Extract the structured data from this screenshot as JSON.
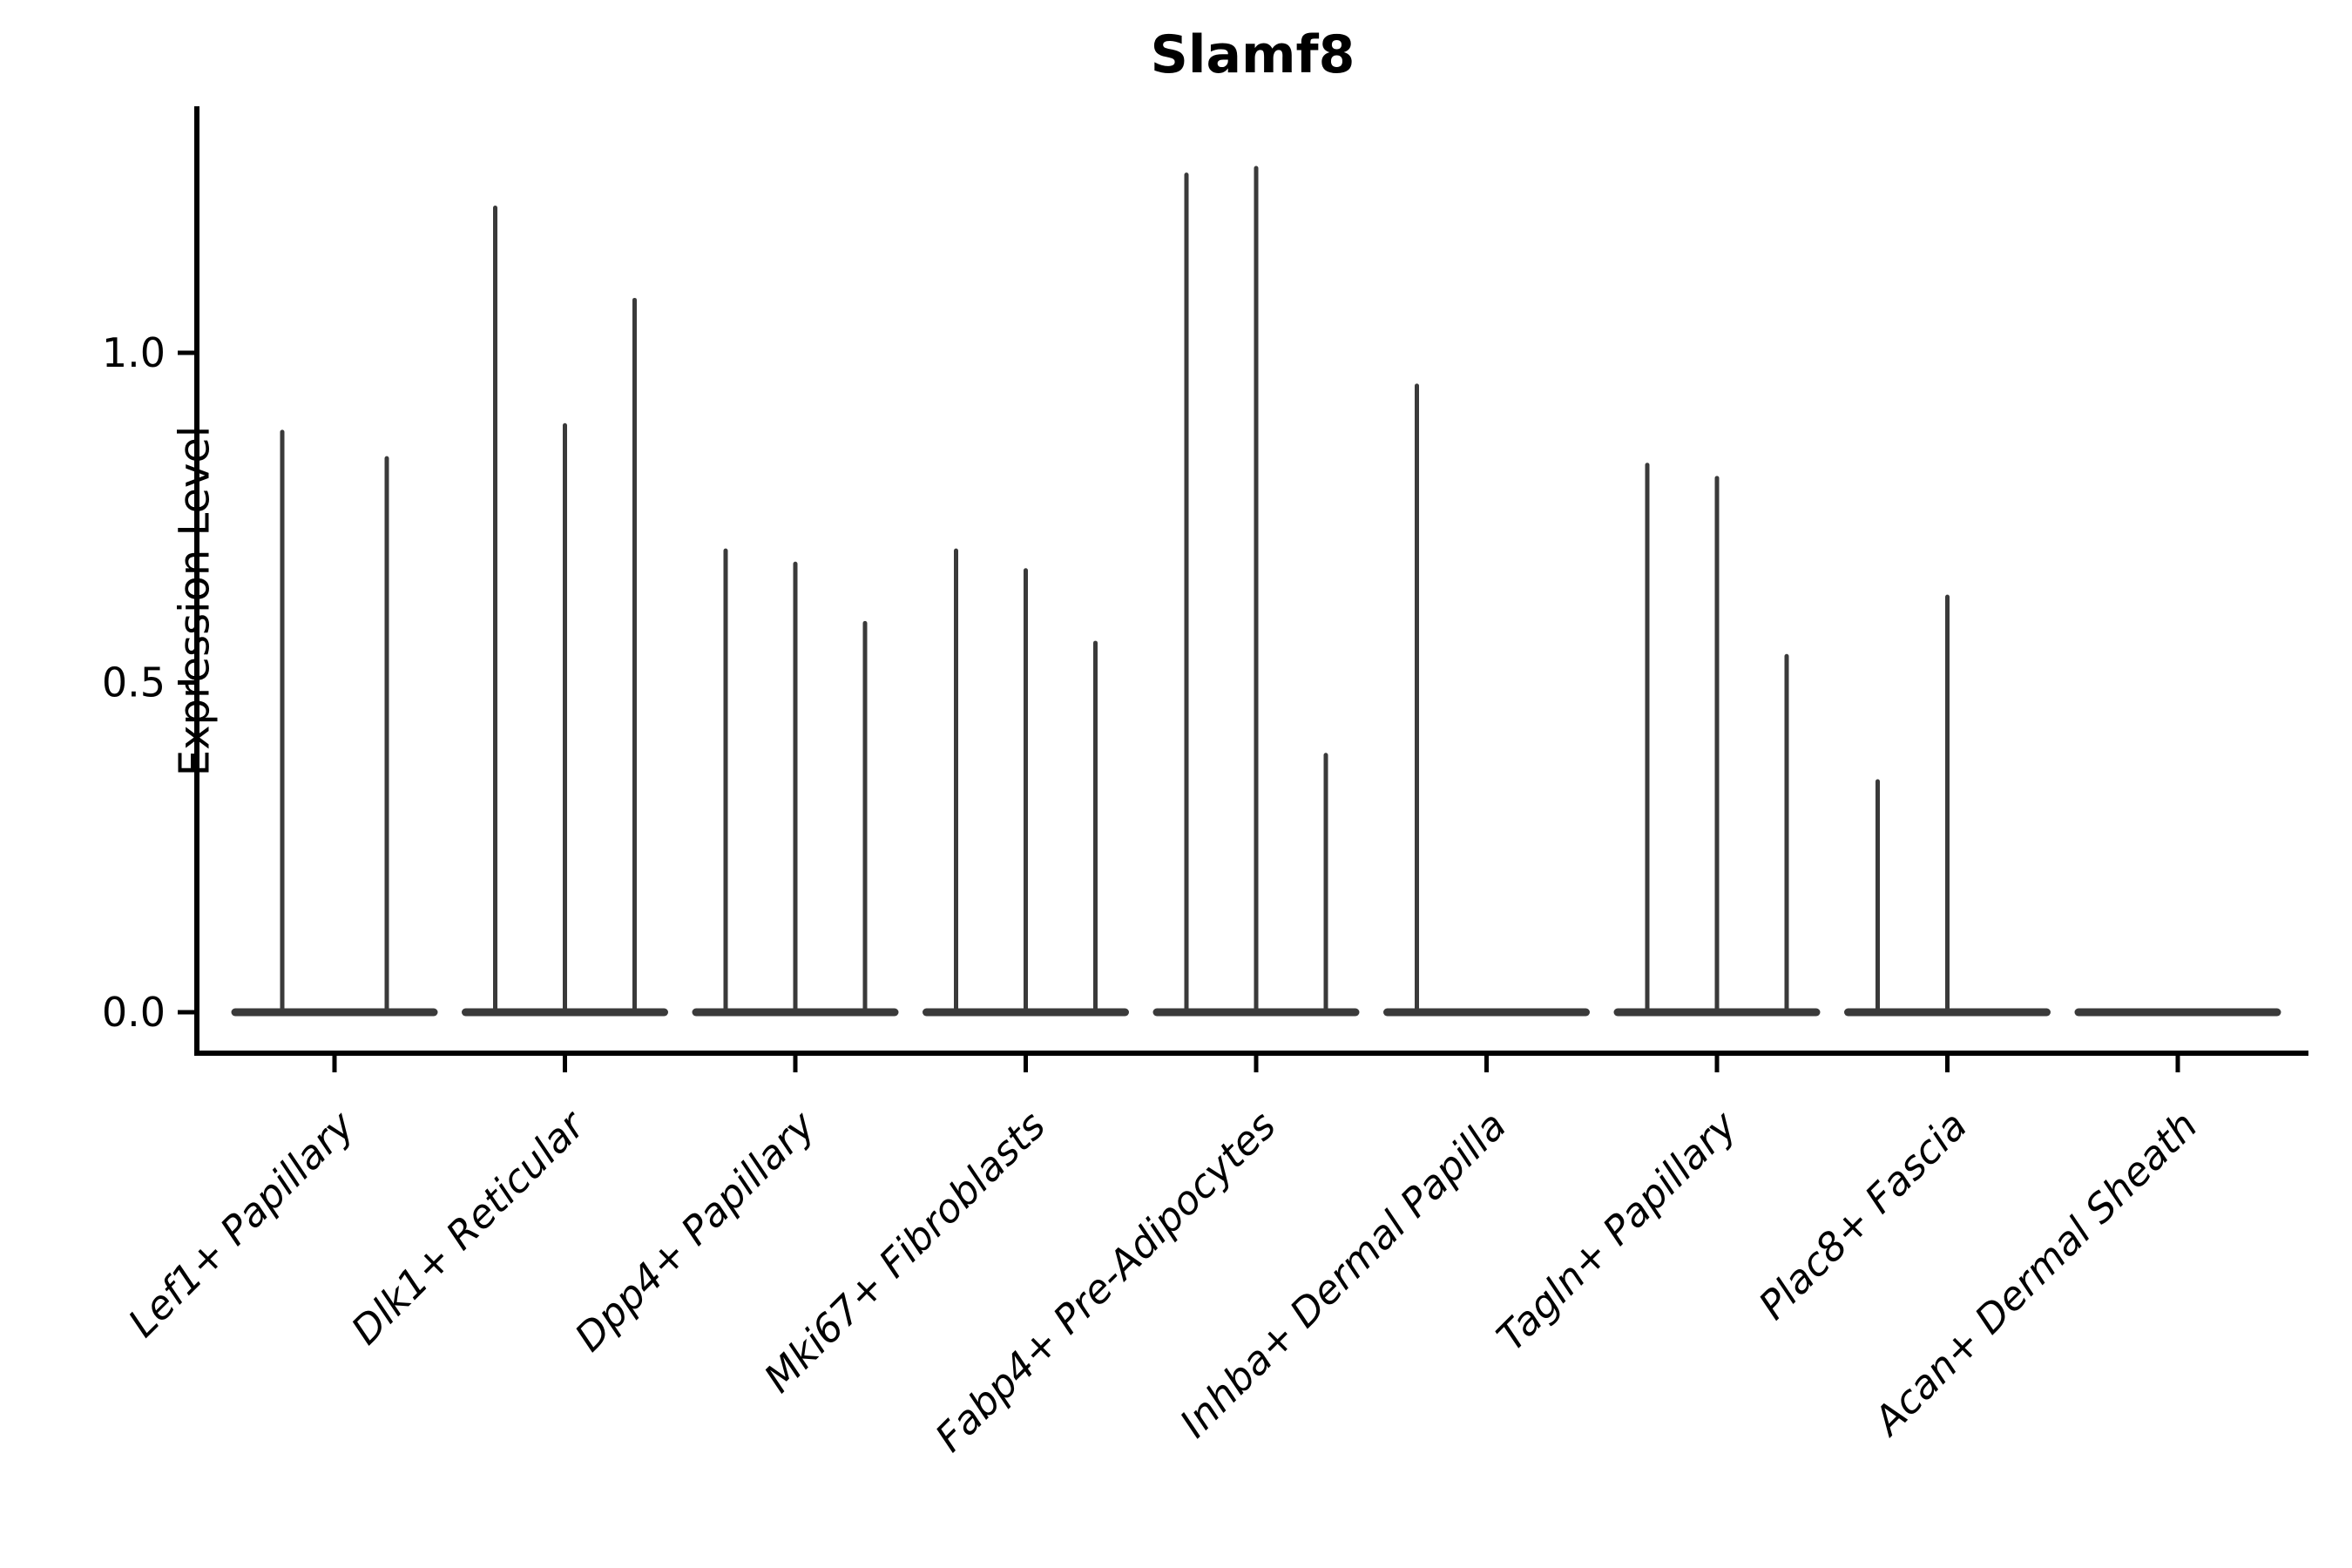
{
  "chart_data": {
    "type": "violin",
    "title": "Slamf8",
    "ylabel": "Expression Level",
    "xlabel": "",
    "yticks": [
      0.0,
      0.5,
      1.0
    ],
    "ylim": [
      -0.06,
      1.37
    ],
    "grid": false,
    "legend": "none",
    "x_tick_rotation": 45,
    "colors": {
      "violin": "#3a3a3a",
      "axis": "#000000",
      "background": "#ffffff"
    },
    "groups": [
      {
        "label": "Lef1+ Papillary",
        "violin_maxima": [
          0.88,
          0.84
        ]
      },
      {
        "label": "Dlk1+ Reticular",
        "violin_maxima": [
          1.22,
          0.89,
          1.08
        ]
      },
      {
        "label": "Dpp4+ Papillary",
        "violin_maxima": [
          0.7,
          0.68,
          0.59
        ]
      },
      {
        "label": "Mki67+ Fibroblasts",
        "violin_maxima": [
          0.7,
          0.67,
          0.56
        ]
      },
      {
        "label": "Fabp4+ Pre-Adipocytes",
        "violin_maxima": [
          1.27,
          1.28,
          0.39
        ]
      },
      {
        "label": "Inhba+ Dermal Papilla",
        "violin_maxima": [
          0.95,
          0.0,
          0.0
        ]
      },
      {
        "label": "Tagln+ Papillary",
        "violin_maxima": [
          0.83,
          0.81,
          0.54
        ]
      },
      {
        "label": "Plac8+ Fascia",
        "violin_maxima": [
          0.35,
          0.63,
          0.0
        ]
      },
      {
        "label": "Acan+ Dermal Sheath",
        "violin_maxima": [
          0.0,
          0.0,
          0.0
        ]
      }
    ]
  }
}
